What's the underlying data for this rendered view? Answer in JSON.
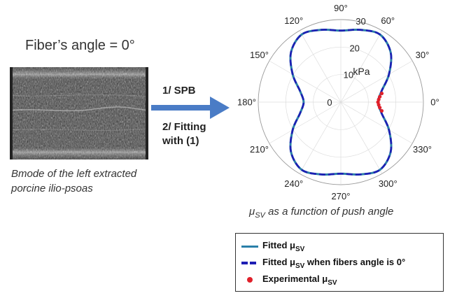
{
  "left_panel": {
    "title": "Fiber’s angle = 0°",
    "caption_line1": "Bmode of the left extracted",
    "caption_line2": "porcine ilio-psoas"
  },
  "steps": {
    "step1": "1/ SPB",
    "step2": "2/ Fitting with (1)"
  },
  "colors": {
    "fitted": "#2a7fa8",
    "fitted_dashed": "#1e1eb4",
    "experimental": "#e0202a",
    "arrow": "#4a7cc6"
  },
  "chart_data": {
    "type": "polar",
    "radial_unit": "kPa",
    "radial_ticks": [
      10,
      20,
      30
    ],
    "radial_range": [
      0,
      30
    ],
    "angle_ticks": [
      "0°",
      "30°",
      "60°",
      "90°",
      "120°",
      "150°",
      "180°",
      "210°",
      "240°",
      "270°",
      "300°",
      "330°"
    ],
    "angle_tick_values": [
      0,
      30,
      60,
      90,
      120,
      150,
      180,
      210,
      240,
      270,
      300,
      330
    ],
    "center_label": "0",
    "fitted_curve": {
      "angles_deg": [
        0,
        15,
        30,
        45,
        60,
        75,
        90,
        105,
        120,
        135,
        150,
        165,
        180,
        195,
        210,
        225,
        240,
        255,
        270,
        285,
        300,
        315,
        330,
        345,
        360
      ],
      "r_kpa": [
        13.5,
        15.3,
        20.2,
        25.6,
        28.4,
        27.2,
        26.0,
        27.2,
        28.4,
        25.6,
        20.2,
        15.3,
        13.5,
        15.3,
        20.2,
        25.6,
        28.4,
        27.2,
        26.0,
        27.2,
        28.4,
        25.6,
        20.2,
        15.3,
        13.5
      ]
    },
    "experimental_points": {
      "angles_deg": [
        -12,
        -8,
        -4,
        0,
        4,
        8,
        12
      ],
      "r_kpa": [
        15.2,
        14.3,
        13.8,
        13.5,
        13.8,
        14.3,
        15.2
      ]
    },
    "legend": [
      {
        "main": "Fitted μ",
        "sub": "SV",
        "after": ""
      },
      {
        "main": "Fitted μ",
        "sub": "SV",
        "after": " when fibers angle is 0°"
      },
      {
        "main": "Experimental μ",
        "sub": "SV",
        "after": ""
      }
    ],
    "caption_mu": "μ",
    "caption_sub": "SV",
    "caption_rest": " as a function of push angle"
  }
}
